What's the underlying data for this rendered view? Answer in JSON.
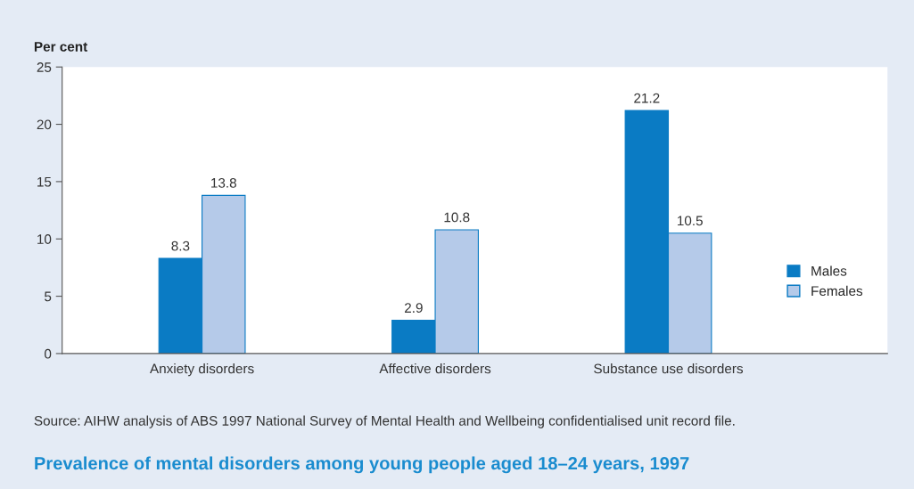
{
  "chart_data": {
    "type": "bar",
    "title": "Prevalence of mental disorders among young people aged 18–24 years, 1997",
    "ylabel": "Per cent",
    "categories": [
      "Anxiety disorders",
      "Affective disorders",
      "Substance use disorders"
    ],
    "series": [
      {
        "name": "Males",
        "color": "#0a7bc4",
        "values": [
          8.3,
          2.9,
          21.2
        ]
      },
      {
        "name": "Females",
        "color": "#b5cae9",
        "values": [
          13.8,
          10.8,
          10.5
        ]
      }
    ],
    "ylim": [
      0,
      25
    ],
    "yticks": [
      0,
      5,
      10,
      15,
      20,
      25
    ],
    "data_labels": true,
    "grid": false,
    "legend": "right",
    "annotations": [
      "Source: AIHW analysis of ABS 1997 National Survey of Mental Health and Wellbeing confidentialised unit record file."
    ]
  }
}
